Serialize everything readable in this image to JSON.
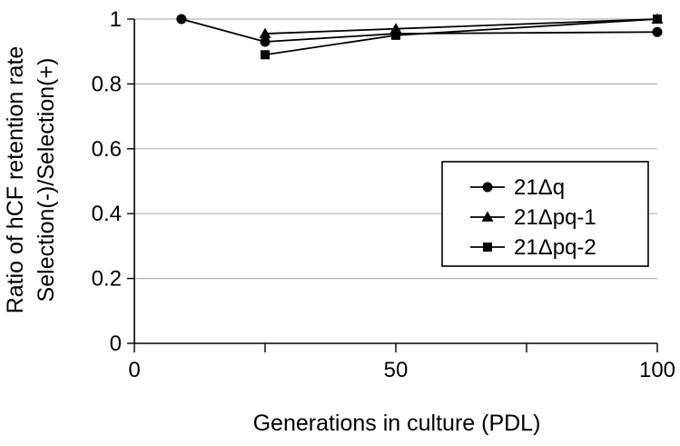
{
  "chart_data": {
    "type": "line",
    "title": "",
    "xlabel": "Generations in culture (PDL)",
    "ylabel_lines": [
      "Ratio of hCF retention rate",
      "Selection(-)/Selection(+)"
    ],
    "xlim": [
      0,
      100
    ],
    "ylim": [
      0,
      1
    ],
    "x_ticks": [
      0,
      50,
      100
    ],
    "x_tick_labels": [
      "0",
      "50",
      "100"
    ],
    "x_minor_ticks": [
      25,
      75
    ],
    "y_ticks": [
      0,
      0.2,
      0.4,
      0.6,
      0.8,
      1
    ],
    "y_tick_labels": [
      "0",
      "0.2",
      "0.4",
      "0.6",
      "0.8",
      "1"
    ],
    "grid": "horizontal",
    "legend_position": "center-right",
    "series": [
      {
        "name": "21Δq",
        "marker": "circle",
        "color": "#000000",
        "x": [
          9,
          25,
          50,
          100
        ],
        "y": [
          1.0,
          0.93,
          0.955,
          0.96
        ]
      },
      {
        "name": "21Δpq-1",
        "marker": "triangle",
        "color": "#000000",
        "x": [
          25,
          50,
          100
        ],
        "y": [
          0.955,
          0.97,
          1.0
        ]
      },
      {
        "name": "21Δpq-2",
        "marker": "square",
        "color": "#000000",
        "x": [
          25,
          50,
          100
        ],
        "y": [
          0.89,
          0.95,
          1.0
        ]
      }
    ]
  }
}
